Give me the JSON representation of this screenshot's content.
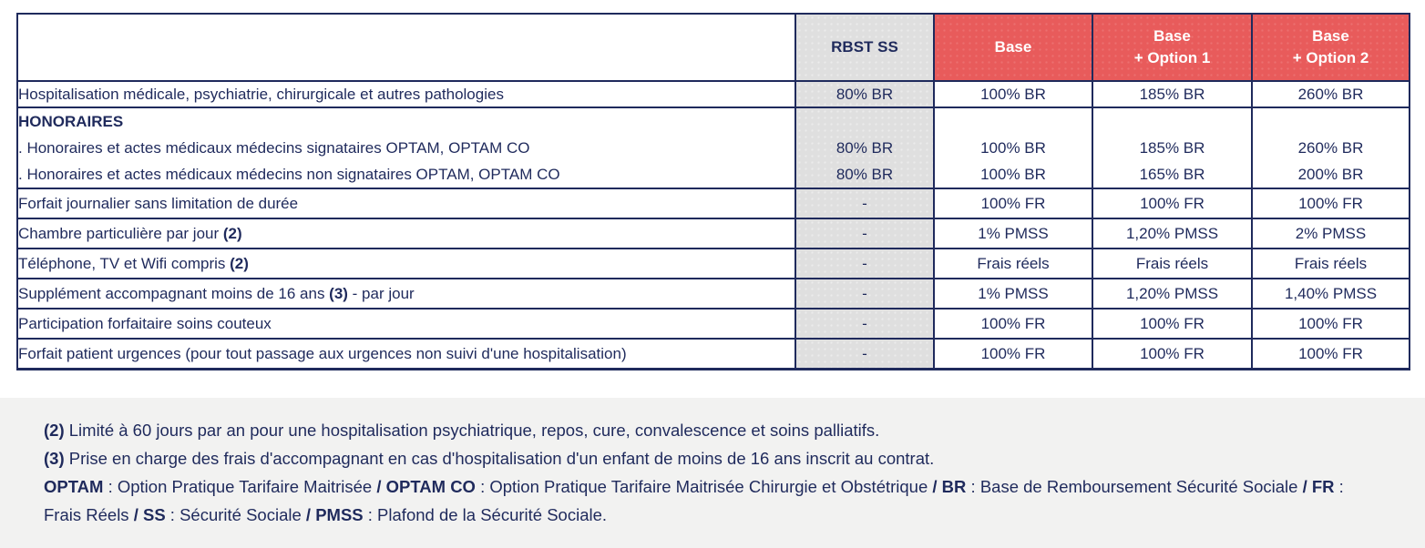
{
  "colors": {
    "navy_text_border": "#1f2a5c",
    "header_red": "#e85b5b",
    "header_gray": "#dfdfdf",
    "footer_background": "#f2f2f1",
    "page_background": "#ffffff"
  },
  "table": {
    "columns": [
      {
        "id": "rbst-ss",
        "lines": [
          "RBST SS"
        ]
      },
      {
        "id": "base",
        "lines": [
          "Base"
        ]
      },
      {
        "id": "base-option-1",
        "lines": [
          "Base",
          "+ Option 1"
        ]
      },
      {
        "id": "base-option-2",
        "lines": [
          "Base",
          "+ Option 2"
        ]
      }
    ],
    "rows": [
      {
        "label": [
          {
            "t": "Hospitalisation médicale, psychiatrie, chirurgicale et autres pathologies",
            "b": false
          }
        ],
        "values": [
          "80% BR",
          "100% BR",
          "185% BR",
          "260% BR"
        ]
      },
      {
        "label": [
          {
            "t": "Forfait journalier sans limitation de durée",
            "b": false
          }
        ],
        "values": [
          "-",
          "100% FR",
          "100% FR",
          "100% FR"
        ]
      },
      {
        "label": [
          {
            "t": "Chambre particulière  par jour ",
            "b": false
          },
          {
            "t": "(2)",
            "b": true
          }
        ],
        "values": [
          "-",
          "1% PMSS",
          "1,20% PMSS",
          "2% PMSS"
        ]
      },
      {
        "label": [
          {
            "t": "Téléphone, TV et Wifi compris ",
            "b": false
          },
          {
            "t": "(2)",
            "b": true
          }
        ],
        "values": [
          "-",
          "Frais réels",
          "Frais réels",
          "Frais réels"
        ]
      },
      {
        "label": [
          {
            "t": "Supplément accompagnant moins de 16 ans ",
            "b": false
          },
          {
            "t": "(3)",
            "b": true
          },
          {
            "t": " - par jour",
            "b": false
          }
        ],
        "values": [
          "-",
          "1% PMSS",
          "1,20% PMSS",
          "1,40% PMSS"
        ]
      },
      {
        "label": [
          {
            "t": "Participation forfaitaire soins couteux",
            "b": false
          }
        ],
        "values": [
          "-",
          "100% FR",
          "100% FR",
          "100% FR"
        ]
      },
      {
        "label": [
          {
            "t": "Forfait patient urgences (pour tout passage aux urgences non suivi d'une hospitalisation)",
            "b": false
          }
        ],
        "values": [
          "-",
          "100% FR",
          "100% FR",
          "100% FR"
        ]
      }
    ],
    "honoraires": {
      "heading": "HONORAIRES",
      "sublines": [
        ". Honoraires et actes médicaux médecins signataires OPTAM, OPTAM CO",
        ". Honoraires et actes médicaux médecins non signataires OPTAM, OPTAM CO"
      ],
      "signataires_values": [
        "80% BR",
        "100% BR",
        "185% BR",
        "260% BR"
      ],
      "non_signataires_values": [
        "80% BR",
        "100% BR",
        "165% BR",
        "200% BR"
      ]
    }
  },
  "footer": {
    "note2": [
      {
        "t": "(2)",
        "b": true
      },
      {
        "t": " Limité à 60 jours par an pour une hospitalisation psychiatrique, repos, cure, convalescence et soins palliatifs.",
        "b": false
      }
    ],
    "note3": [
      {
        "t": "(3)",
        "b": true
      },
      {
        "t": " Prise en charge des frais d'accompagnant en cas d'hospitalisation d'un enfant de moins de 16 ans inscrit au contrat.",
        "b": false
      }
    ],
    "glossary": [
      {
        "t": "OPTAM",
        "b": true
      },
      {
        "t": " : Option Pratique Tarifaire Maitrisée ",
        "b": false
      },
      {
        "t": "/ OPTAM CO",
        "b": true
      },
      {
        "t": " : Option Pratique Tarifaire Maitrisée Chirurgie et Obstétrique ",
        "b": false
      },
      {
        "t": "/ BR",
        "b": true
      },
      {
        "t": " : Base de Remboursement Sécurité Sociale ",
        "b": false
      },
      {
        "t": "/ FR",
        "b": true
      },
      {
        "t": " : Frais Réels ",
        "b": false
      },
      {
        "t": "/ SS",
        "b": true
      },
      {
        "t": " : Sécurité Sociale ",
        "b": false
      },
      {
        "t": "/ PMSS",
        "b": true
      },
      {
        "t": " : Plafond de la Sécurité Sociale.",
        "b": false
      }
    ]
  }
}
